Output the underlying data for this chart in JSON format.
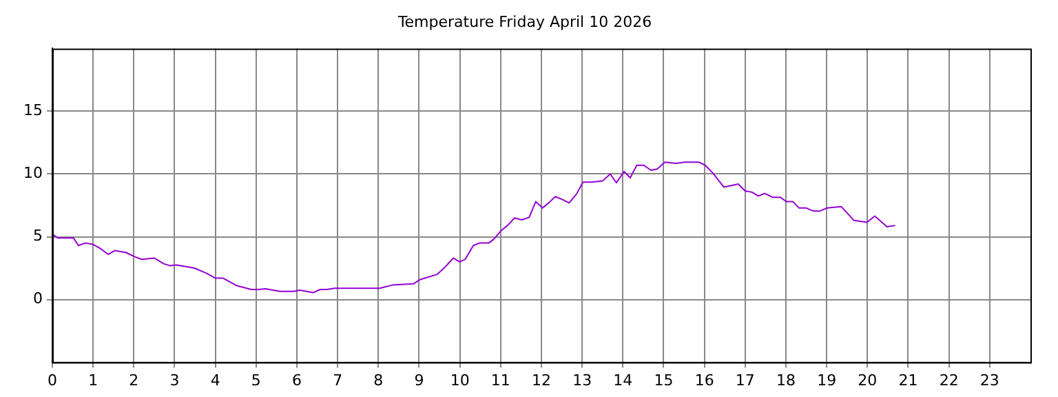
{
  "chart_data": {
    "type": "line",
    "title": "Temperature Friday April 10 2026",
    "x": [
      0,
      0.14,
      0.52,
      0.64,
      0.81,
      0.99,
      1.16,
      1.37,
      1.53,
      1.8,
      2.03,
      2.19,
      2.5,
      2.73,
      2.88,
      3.05,
      3.49,
      3.78,
      4.0,
      4.19,
      4.53,
      4.88,
      5.06,
      5.23,
      5.58,
      5.93,
      6.07,
      6.4,
      6.57,
      6.74,
      6.92,
      8.03,
      8.34,
      8.86,
      9.03,
      9.44,
      9.64,
      9.84,
      9.99,
      10.13,
      10.33,
      10.48,
      10.71,
      10.83,
      11.0,
      11.17,
      11.34,
      11.52,
      11.7,
      11.86,
      12.03,
      12.18,
      12.34,
      12.53,
      12.68,
      12.86,
      13.02,
      13.23,
      13.5,
      13.69,
      13.84,
      14.03,
      14.18,
      14.34,
      14.51,
      14.69,
      14.84,
      15.03,
      15.3,
      15.53,
      15.86,
      16.02,
      16.2,
      16.48,
      16.83,
      17.0,
      17.17,
      17.32,
      17.48,
      17.67,
      17.86,
      18.01,
      18.17,
      18.32,
      18.49,
      18.67,
      18.84,
      19.01,
      19.36,
      19.67,
      19.99,
      20.18,
      20.48,
      20.68
    ],
    "series": [
      {
        "color": "#9400d3",
        "values": [
          5.2,
          4.9,
          4.9,
          4.3,
          4.5,
          4.4,
          4.1,
          3.6,
          3.9,
          3.75,
          3.4,
          3.2,
          3.3,
          2.85,
          2.7,
          2.75,
          2.5,
          2.1,
          1.7,
          1.7,
          1.1,
          0.8,
          0.8,
          0.85,
          0.65,
          0.65,
          0.75,
          0.55,
          0.8,
          0.8,
          0.9,
          0.9,
          1.15,
          1.25,
          1.6,
          2.0,
          2.6,
          3.3,
          3.0,
          3.2,
          4.3,
          4.5,
          4.5,
          4.8,
          5.45,
          5.9,
          6.5,
          6.35,
          6.55,
          7.8,
          7.3,
          7.7,
          8.2,
          7.95,
          7.7,
          8.4,
          9.35,
          9.35,
          9.45,
          10.0,
          9.3,
          10.2,
          9.7,
          10.7,
          10.7,
          10.3,
          10.4,
          10.95,
          10.85,
          10.95,
          10.95,
          10.7,
          10.1,
          8.95,
          9.2,
          8.65,
          8.55,
          8.25,
          8.45,
          8.15,
          8.15,
          7.8,
          7.8,
          7.3,
          7.3,
          7.05,
          7.05,
          7.3,
          7.4,
          6.3,
          6.15,
          6.65,
          5.8,
          5.9
        ]
      }
    ],
    "xlim": [
      0,
      24
    ],
    "xticks": [
      0,
      1,
      2,
      3,
      4,
      5,
      6,
      7,
      8,
      9,
      10,
      11,
      12,
      13,
      14,
      15,
      16,
      17,
      18,
      19,
      20,
      21,
      22,
      23
    ],
    "ylim": [
      -5,
      20
    ],
    "yticks": [
      0,
      5,
      10,
      15
    ],
    "grid": true,
    "legend": false,
    "marker": "none",
    "line_style": "solid"
  }
}
